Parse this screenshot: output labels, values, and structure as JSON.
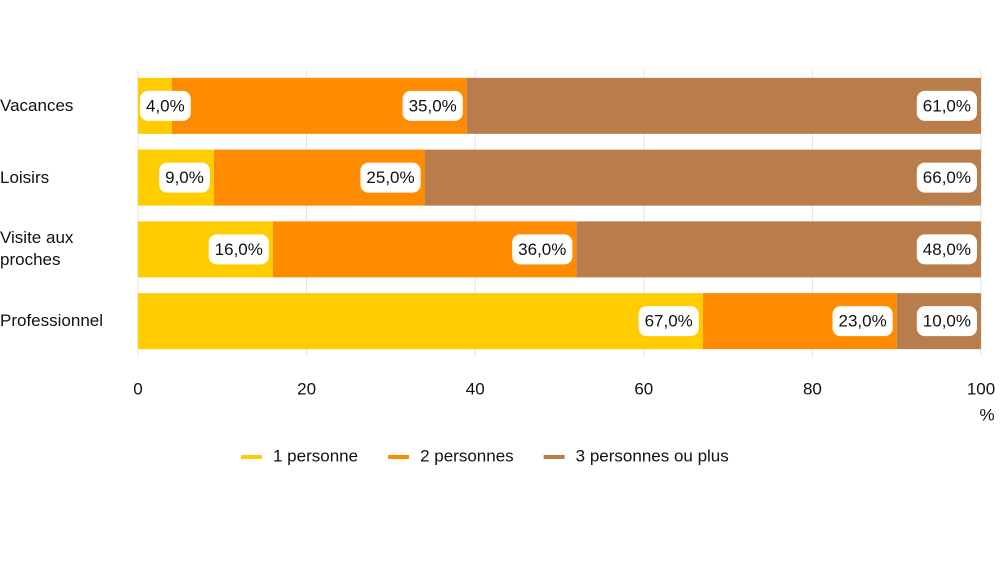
{
  "chart_data": {
    "type": "stacked-bar-horizontal",
    "categories": [
      "Vacances",
      "Loisirs",
      "Visite aux proches",
      "Professionnel"
    ],
    "series": [
      {
        "name": "1 personne",
        "color": "#ffcc00",
        "values": [
          4,
          9,
          16,
          67
        ],
        "value_labels": [
          "4,0%",
          "9,0%",
          "16,0%",
          "67,0%"
        ]
      },
      {
        "name": "2 personnes",
        "color": "#ff8c00",
        "values": [
          35,
          25,
          36,
          23
        ],
        "value_labels": [
          "35,0%",
          "25,0%",
          "36,0%",
          "23,0%"
        ]
      },
      {
        "name": "3 personnes ou plus",
        "color": "#b87d4b",
        "values": [
          61,
          66,
          48,
          10
        ],
        "value_labels": [
          "61,0%",
          "66,0%",
          "48,0%",
          "10,0%"
        ]
      }
    ],
    "xlabel": "%",
    "xlim": [
      0,
      100
    ],
    "xticks": [
      0,
      20,
      40,
      60,
      80,
      100
    ],
    "grid": true
  }
}
